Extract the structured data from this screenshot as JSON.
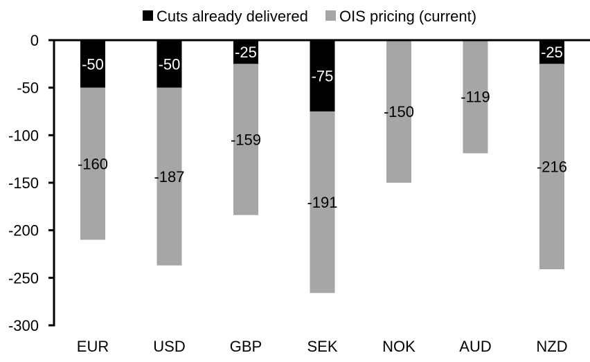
{
  "chart_data": {
    "type": "bar",
    "stacked": true,
    "categories": [
      "EUR",
      "USD",
      "GBP",
      "SEK",
      "NOK",
      "AUD",
      "NZD"
    ],
    "series": [
      {
        "name": "Cuts already delivered",
        "color": "#000000",
        "values": [
          -50,
          -50,
          -25,
          -75,
          0,
          0,
          -25
        ]
      },
      {
        "name": "OIS pricing (current)",
        "color": "#a6a6a6",
        "values": [
          -160,
          -187,
          -159,
          -191,
          -150,
          -119,
          -216
        ]
      }
    ],
    "ylim": [
      -300,
      0
    ],
    "yticks": [
      0,
      -50,
      -100,
      -150,
      -200,
      -250,
      -300
    ],
    "grid": false,
    "legend": "top"
  }
}
